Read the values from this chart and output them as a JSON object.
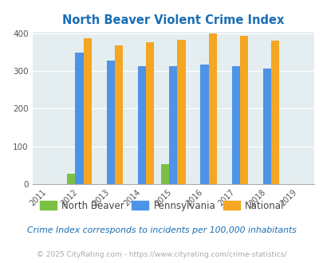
{
  "title": "North Beaver Violent Crime Index",
  "years": [
    2011,
    2012,
    2013,
    2014,
    2015,
    2016,
    2017,
    2018,
    2019
  ],
  "data_years": [
    2012,
    2013,
    2014,
    2015,
    2016,
    2017,
    2018
  ],
  "north_beaver": [
    27,
    0,
    0,
    52,
    0,
    0,
    0
  ],
  "pennsylvania": [
    350,
    328,
    313,
    314,
    317,
    314,
    306
  ],
  "national": [
    387,
    368,
    377,
    384,
    399,
    394,
    381
  ],
  "color_nb": "#7bc043",
  "color_pa": "#4d94e8",
  "color_nat": "#f5a623",
  "bg_color": "#e4edef",
  "title_color": "#1a6eb5",
  "ylabel_max": 400,
  "yticks": [
    0,
    100,
    200,
    300,
    400
  ],
  "subtitle": "Crime Index corresponds to incidents per 100,000 inhabitants",
  "footer": "© 2025 CityRating.com - https://www.cityrating.com/crime-statistics/",
  "subtitle_color": "#1a6eb5",
  "footer_color": "#aaaaaa",
  "legend_labels": [
    "North Beaver",
    "Pennsylvania",
    "National"
  ],
  "legend_text_color": "#444444"
}
